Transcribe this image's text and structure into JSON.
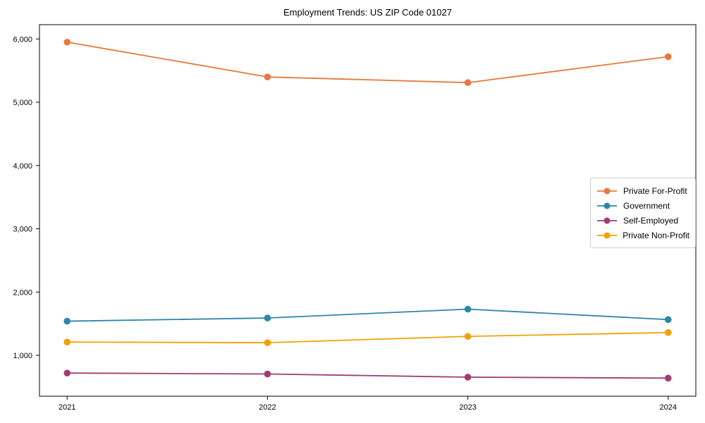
{
  "chart_data": {
    "type": "line",
    "title": "Employment Trends: US ZIP Code 01027",
    "xlabel": "",
    "ylabel": "",
    "x": [
      2021,
      2022,
      2023,
      2024
    ],
    "xtick_labels": [
      "2021",
      "2022",
      "2023",
      "2024"
    ],
    "yticks": [
      1000,
      2000,
      3000,
      4000,
      5000,
      6000
    ],
    "ytick_labels": [
      "1,000",
      "2,000",
      "3,000",
      "4,000",
      "5,000",
      "6,000"
    ],
    "xlim": [
      2020.862,
      2024.138
    ],
    "ylim": [
      354,
      6226
    ],
    "grid": false,
    "marker": "circle",
    "legend_position": "center-right",
    "series": [
      {
        "name": "Private For-Profit",
        "color": "#E8773D",
        "values": [
          5950,
          5400,
          5310,
          5720
        ]
      },
      {
        "name": "Government",
        "color": "#2E86AB",
        "values": [
          1540,
          1590,
          1730,
          1565
        ]
      },
      {
        "name": "Self-Employed",
        "color": "#A23B72",
        "values": [
          720,
          705,
          655,
          640
        ]
      },
      {
        "name": "Private Non-Profit",
        "color": "#F2A104",
        "values": [
          1210,
          1200,
          1300,
          1360
        ]
      }
    ]
  }
}
